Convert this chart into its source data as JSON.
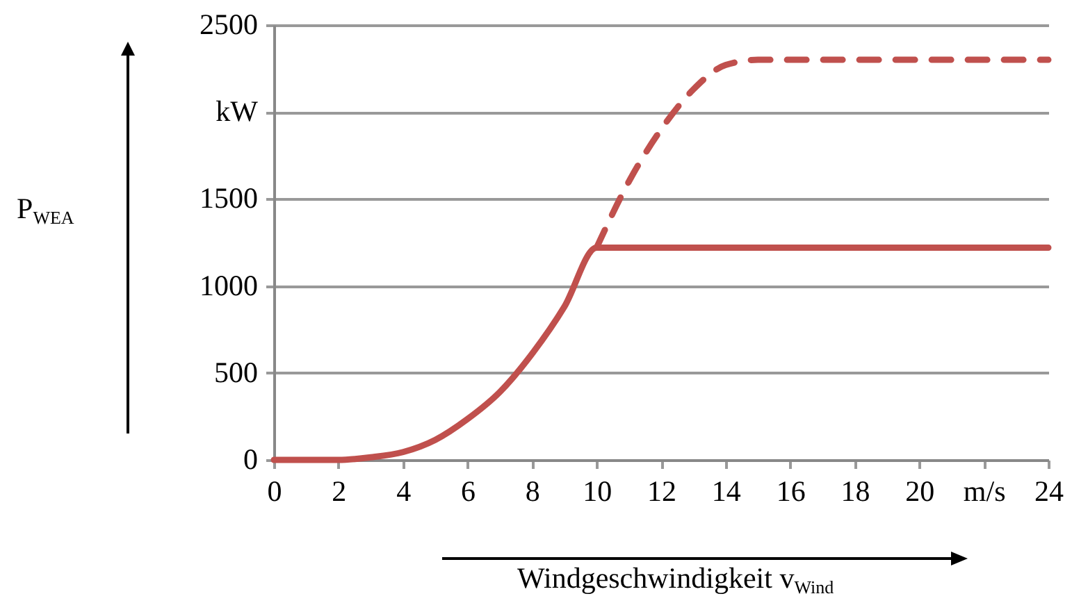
{
  "chart_data": {
    "type": "line",
    "xlabel": "Windgeschwindigkeit v$_{Wind}$",
    "ylabel": "P$_{WEA}$",
    "xlim": [
      0,
      24
    ],
    "xticks": [
      0,
      2,
      4,
      6,
      8,
      10,
      12,
      14,
      16,
      18,
      {
        "value": 20,
        "label": "20"
      },
      {
        "value": 22,
        "label": "m/s"
      },
      24
    ],
    "ylim": [
      0,
      2500
    ],
    "yticks": [
      0,
      500,
      1000,
      1500,
      {
        "value": 2000,
        "label": "kW"
      },
      2500
    ],
    "grid": "y",
    "marker": "none",
    "series": [
      {
        "color": "#c0504d",
        "line_style": "dashed",
        "x": [
          10,
          11,
          12,
          13,
          14,
          15,
          24
        ],
        "values": [
          1220,
          1600,
          1900,
          2130,
          2270,
          2300,
          2300
        ]
      },
      {
        "color": "#c0504d",
        "line_style": "solid",
        "x": [
          0,
          1,
          2,
          3,
          4,
          5,
          6,
          7,
          8,
          9,
          10,
          24
        ],
        "values": [
          0,
          0,
          0,
          15,
          45,
          115,
          235,
          390,
          610,
          880,
          1220,
          1220
        ]
      }
    ]
  }
}
